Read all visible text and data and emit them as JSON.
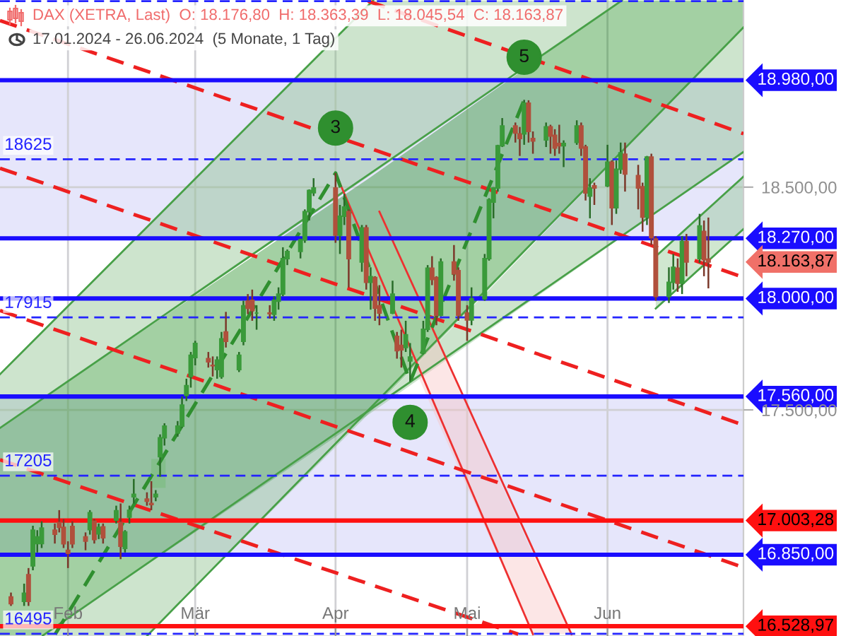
{
  "chart_data": {
    "type": "candlestick",
    "title": "DAX (XETRA, Last)  O: 18.176,80  H: 18.363,39  L: 18.045,54  C: 18.163,87",
    "subtitle": "17.01.2024 - 26.06.2024  (5 Monate, 1 Tag)",
    "x": [
      "2024-01-19",
      "2024-01-22",
      "2024-01-23",
      "2024-01-24",
      "2024-01-25",
      "2024-01-26",
      "2024-01-29",
      "2024-01-30",
      "2024-01-31",
      "2024-02-01",
      "2024-02-02",
      "2024-02-05",
      "2024-02-06",
      "2024-02-07",
      "2024-02-08",
      "2024-02-09",
      "2024-02-12",
      "2024-02-13",
      "2024-02-14",
      "2024-02-15",
      "2024-02-16",
      "2024-02-19",
      "2024-02-20",
      "2024-02-21",
      "2024-02-22",
      "2024-02-23",
      "2024-02-26",
      "2024-02-27",
      "2024-02-28",
      "2024-02-29",
      "2024-03-01",
      "2024-03-04",
      "2024-03-05",
      "2024-03-06",
      "2024-03-07",
      "2024-03-08",
      "2024-03-11",
      "2024-03-12",
      "2024-03-13",
      "2024-03-14",
      "2024-03-15",
      "2024-03-18",
      "2024-03-19",
      "2024-03-20",
      "2024-03-21",
      "2024-03-22",
      "2024-03-25",
      "2024-03-26",
      "2024-03-27",
      "2024-03-28",
      "2024-04-02",
      "2024-04-03",
      "2024-04-04",
      "2024-04-05",
      "2024-04-08",
      "2024-04-09",
      "2024-04-10",
      "2024-04-11",
      "2024-04-12",
      "2024-04-15",
      "2024-04-16",
      "2024-04-17",
      "2024-04-18",
      "2024-04-19",
      "2024-04-22",
      "2024-04-23",
      "2024-04-24",
      "2024-04-25",
      "2024-04-26",
      "2024-04-29",
      "2024-04-30",
      "2024-05-02",
      "2024-05-03",
      "2024-05-06",
      "2024-05-07",
      "2024-05-08",
      "2024-05-09",
      "2024-05-10",
      "2024-05-13",
      "2024-05-14",
      "2024-05-15",
      "2024-05-16",
      "2024-05-17",
      "2024-05-20",
      "2024-05-21",
      "2024-05-22",
      "2024-05-23",
      "2024-05-24",
      "2024-05-27",
      "2024-05-28",
      "2024-05-29",
      "2024-05-30",
      "2024-05-31",
      "2024-06-03",
      "2024-06-04",
      "2024-06-05",
      "2024-06-06",
      "2024-06-07",
      "2024-06-10",
      "2024-06-11",
      "2024-06-12",
      "2024-06-13",
      "2024-06-14",
      "2024-06-17",
      "2024-06-18",
      "2024-06-19",
      "2024-06-20",
      "2024-06-21",
      "2024-06-24",
      "2024-06-25",
      "2024-06-26"
    ],
    "ohlc": [
      [
        16660,
        16680,
        16620,
        16630
      ],
      [
        16640,
        16720,
        16620,
        16677
      ],
      [
        16760,
        16790,
        16620,
        16640
      ],
      [
        16800,
        16980,
        16780,
        16960
      ],
      [
        16900,
        16960,
        16860,
        16930
      ],
      [
        16900,
        17000,
        16880,
        16970
      ],
      [
        16960,
        16990,
        16900,
        16942
      ],
      [
        16994,
        17050,
        16950,
        16973
      ],
      [
        16973,
        17010,
        16880,
        16899
      ],
      [
        16870,
        16910,
        16790,
        16856
      ],
      [
        16977,
        17000,
        16880,
        16899
      ],
      [
        16930,
        16950,
        16870,
        16911
      ],
      [
        16962,
        17050,
        16940,
        17039
      ],
      [
        17000,
        17010,
        16900,
        16918
      ],
      [
        16943,
        16990,
        16920,
        16973
      ],
      [
        16975,
        16990,
        16900,
        16926
      ],
      [
        17005,
        17070,
        16990,
        17047
      ],
      [
        16994,
        17080,
        16830,
        16888
      ],
      [
        16878,
        16960,
        16860,
        16952
      ],
      [
        17019,
        17070,
        16990,
        17050
      ],
      [
        17110,
        17190,
        17080,
        17121
      ],
      [
        17100,
        17130,
        17070,
        17090
      ],
      [
        17080,
        17180,
        17050,
        17075
      ],
      [
        17110,
        17140,
        17090,
        17121
      ],
      [
        17290,
        17390,
        17200,
        17375
      ],
      [
        17375,
        17440,
        17340,
        17427
      ],
      [
        17396,
        17450,
        17380,
        17427
      ],
      [
        17427,
        17560,
        17420,
        17522
      ],
      [
        17565,
        17640,
        17540,
        17609
      ],
      [
        17650,
        17760,
        17600,
        17745
      ],
      [
        17735,
        17810,
        17700,
        17798
      ],
      [
        17730,
        17760,
        17690,
        17716
      ],
      [
        17700,
        17740,
        17650,
        17698
      ],
      [
        17681,
        17740,
        17640,
        17724
      ],
      [
        17650,
        17850,
        17640,
        17819
      ],
      [
        17850,
        17940,
        17780,
        17808
      ],
      [
        17681,
        17760,
        17670,
        17745
      ],
      [
        17808,
        17990,
        17790,
        17967
      ],
      [
        17988,
        18020,
        17930,
        17956
      ],
      [
        17992,
        18040,
        17900,
        17946
      ],
      [
        17935,
        17970,
        17860,
        17935
      ],
      [
        17935,
        17970,
        17910,
        17932
      ],
      [
        17929,
        18010,
        17900,
        17992
      ],
      [
        17988,
        18050,
        17950,
        18020
      ],
      [
        18020,
        18230,
        18010,
        18179
      ],
      [
        18179,
        18220,
        18150,
        18211
      ],
      [
        18211,
        18270,
        18180,
        18263
      ],
      [
        18263,
        18400,
        18250,
        18390
      ],
      [
        18390,
        18490,
        18350,
        18485
      ],
      [
        18475,
        18540,
        18460,
        18496
      ],
      [
        18496,
        18563,
        18250,
        18284
      ],
      [
        18284,
        18420,
        18200,
        18369
      ],
      [
        18369,
        18470,
        18330,
        18411
      ],
      [
        18390,
        18400,
        18050,
        18179
      ],
      [
        18164,
        18330,
        18120,
        18317
      ],
      [
        18317,
        18330,
        18040,
        18073
      ],
      [
        18073,
        18140,
        17950,
        18098
      ],
      [
        18094,
        18100,
        17900,
        17957
      ],
      [
        17967,
        18060,
        17880,
        17935
      ],
      [
        17935,
        18080,
        17930,
        18020
      ],
      [
        17830,
        17850,
        17730,
        17766
      ],
      [
        17790,
        17860,
        17690,
        17770
      ],
      [
        17780,
        17900,
        17760,
        17837
      ],
      [
        17720,
        17800,
        17626,
        17737
      ],
      [
        17755,
        17900,
        17750,
        17862
      ],
      [
        17862,
        18150,
        17850,
        18136
      ],
      [
        18136,
        18190,
        18060,
        18085
      ],
      [
        18094,
        18100,
        17880,
        17925
      ],
      [
        17925,
        18180,
        17920,
        18164
      ],
      [
        18164,
        18240,
        18080,
        18111
      ],
      [
        18125,
        18140,
        17900,
        17925
      ],
      [
        17935,
        17970,
        17810,
        17904
      ],
      [
        17904,
        18050,
        17880,
        17999
      ],
      [
        17999,
        18200,
        17990,
        18179
      ],
      [
        18179,
        18450,
        18170,
        18443
      ],
      [
        18433,
        18500,
        18360,
        18496
      ],
      [
        18496,
        18690,
        18480,
        18686
      ],
      [
        18686,
        18810,
        18680,
        18775
      ],
      [
        18775,
        18790,
        18700,
        18743
      ],
      [
        18739,
        18770,
        18640,
        18718
      ],
      [
        18739,
        18892,
        18690,
        18877
      ],
      [
        18877,
        18890,
        18700,
        18750
      ],
      [
        18718,
        18750,
        18650,
        18707
      ],
      [
        18712,
        18790,
        18680,
        18771
      ],
      [
        18771,
        18780,
        18650,
        18729
      ],
      [
        18733,
        18760,
        18640,
        18675
      ],
      [
        18696,
        18780,
        18650,
        18686
      ],
      [
        18686,
        18710,
        18590,
        18696
      ],
      [
        18701,
        18800,
        18690,
        18775
      ],
      [
        18775,
        18790,
        18640,
        18675
      ],
      [
        18680,
        18690,
        18440,
        18474
      ],
      [
        18460,
        18540,
        18360,
        18496
      ],
      [
        18506,
        18520,
        18420,
        18496
      ],
      [
        18506,
        18690,
        18500,
        18612
      ],
      [
        18612,
        18620,
        18330,
        18407
      ],
      [
        18407,
        18620,
        18380,
        18580
      ],
      [
        18580,
        18700,
        18560,
        18654
      ],
      [
        18648,
        18700,
        18480,
        18559
      ],
      [
        18552,
        18600,
        18400,
        18496
      ],
      [
        18502,
        18520,
        18300,
        18365
      ],
      [
        18365,
        18640,
        18330,
        18635
      ],
      [
        18635,
        18650,
        18240,
        18273
      ],
      [
        18267,
        18280,
        17990,
        18009
      ],
      [
        18009,
        18140,
        17980,
        18073
      ],
      [
        18073,
        18200,
        18040,
        18140
      ],
      [
        18136,
        18180,
        18030,
        18069
      ],
      [
        18069,
        18280,
        18020,
        18256
      ],
      [
        18256,
        18290,
        18100,
        18164
      ],
      [
        18179,
        18380,
        18160,
        18326
      ],
      [
        18301,
        18350,
        18100,
        18174
      ],
      [
        18176.8,
        18363.39,
        18045.54,
        18163.87
      ]
    ],
    "colors": [
      "#b0503c",
      "#3a9a3a",
      "#b0503c",
      "#3a9a3a",
      "#3a9a3a",
      "#3a9a3a",
      "#b0503c",
      "#b0503c",
      "#b0503c",
      "#b0503c",
      "#b0503c",
      "#b0503c",
      "#3a9a3a",
      "#b0503c",
      "#3a9a3a",
      "#b0503c",
      "#3a9a3a",
      "#b0503c",
      "#3a9a3a",
      "#3a9a3a",
      "#3a9a3a",
      "#b0503c",
      "#b0503c",
      "#3a9a3a",
      "#3a9a3a",
      "#3a9a3a",
      "#3a9a3a",
      "#3a9a3a",
      "#3a9a3a",
      "#3a9a3a",
      "#3a9a3a",
      "#b0503c",
      "#b0503c",
      "#3a9a3a",
      "#3a9a3a",
      "#b0503c",
      "#3a9a3a",
      "#3a9a3a",
      "#b0503c",
      "#b0503c",
      "#3a9a3a",
      "#b0503c",
      "#3a9a3a",
      "#3a9a3a",
      "#3a9a3a",
      "#3a9a3a",
      "#3a9a3a",
      "#3a9a3a",
      "#3a9a3a",
      "#3a9a3a",
      "#b0503c",
      "#3a9a3a",
      "#3a9a3a",
      "#b0503c",
      "#3a9a3a",
      "#b0503c",
      "#3a9a3a",
      "#b0503c",
      "#b0503c",
      "#3a9a3a",
      "#b0503c",
      "#b0503c",
      "#3a9a3a",
      "#3a9a3a",
      "#3a9a3a",
      "#3a9a3a",
      "#b0503c",
      "#b0503c",
      "#3a9a3a",
      "#b0503c",
      "#b0503c",
      "#b0503c",
      "#3a9a3a",
      "#3a9a3a",
      "#3a9a3a",
      "#3a9a3a",
      "#3a9a3a",
      "#3a9a3a",
      "#b0503c",
      "#b0503c",
      "#3a9a3a",
      "#b0503c",
      "#b0503c",
      "#3a9a3a",
      "#b0503c",
      "#b0503c",
      "#b0503c",
      "#3a9a3a",
      "#3a9a3a",
      "#b0503c",
      "#b0503c",
      "#3a9a3a",
      "#b0503c",
      "#3a9a3a",
      "#b0503c",
      "#3a9a3a",
      "#3a9a3a",
      "#b0503c",
      "#b0503c",
      "#b0503c",
      "#3a9a3a",
      "#b0503c",
      "#b0503c",
      "#3a9a3a",
      "#3a9a3a",
      "#b0503c",
      "#3a9a3a",
      "#b0503c",
      "#3a9a3a",
      "#b0503c",
      "#b0503c"
    ],
    "series": [
      {
        "type": "line",
        "color": "#82bc82",
        "x": [
          "2024-01-16T12:00",
          "2024-04-10T14:00",
          "2024-06-06T07:00"
        ],
        "values": [
          null,
          null,
          null
        ],
        "upper": [
          17660,
          19338,
          19338
        ],
        "lower": [
          17419,
          18562,
          19338
        ]
      },
      {
        "type": "line",
        "color": "#1a8a1a",
        "x": [
          "2024-01-16T12:00",
          "2024-01-26T06:00",
          "2024-04-09T01:00",
          "2024-06-06T07:00",
          "2024-07-04"
        ],
        "values": [
          null,
          null,
          null,
          null,
          null
        ],
        "upper": [
          17419,
          17552,
          18532,
          19338,
          19338
        ],
        "lower": [
          16487,
          16487,
          17472,
          18663,
          19217
        ]
      },
      {
        "type": "line",
        "color": "#82bc82",
        "x": [
          "2024-01-26T06:00",
          "2024-02-19T02:00",
          "2024-04-09T01:00",
          "2024-07-04"
        ],
        "values": [
          null,
          null,
          null,
          null
        ],
        "upper": [
          16487,
          16806,
          17472,
          19217
        ],
        "lower": [
          16487,
          16487,
          17472,
          18658
        ]
      },
      {
        "type": "line",
        "color": "#8ac48a",
        "x": [
          "2024-06-14",
          "2024-07-04"
        ],
        "values": [
          null,
          null
        ],
        "upper": [
          18189,
          18547
        ],
        "lower": [
          17955,
          18312
        ]
      },
      {
        "type": "line",
        "color": "#f8c0c0",
        "x": [
          "2024-04-19T14:00",
          "2024-04-25",
          "2024-05-17",
          "2024-05-25T19:00"
        ],
        "values": [
          null,
          null,
          null,
          null
        ],
        "upper": [
          17708,
          17818,
          16852,
          16493
        ],
        "lower": [
          17708,
          17462,
          16493,
          16493
        ]
      },
      {
        "type": "line",
        "color": "#6cb86c",
        "x": [
          "2024-02-20",
          "2024-02-23T06:00"
        ],
        "values": [
          null,
          null
        ],
        "upper": [
          17280,
          17280
        ],
        "lower": [
          17150,
          17150
        ]
      },
      {
        "type": "line",
        "color": "#48a048",
        "x": [
          "2024-01-16T12:00",
          "2024-04-10T14:00"
        ],
        "values": [
          17660,
          19338
        ]
      },
      {
        "type": "line",
        "color": "#48a048",
        "x": [
          "2024-01-16T12:00",
          "2024-06-06T07:00"
        ],
        "values": [
          17419,
          19338
        ]
      },
      {
        "type": "line",
        "color": "#48a048",
        "x": [
          "2024-02-19T02:00",
          "2024-07-04"
        ],
        "values": [
          16487,
          19217
        ]
      },
      {
        "type": "line",
        "color": "#48a048",
        "x": [
          "2024-01-26T06:00",
          "2024-07-04"
        ],
        "values": [
          16487,
          18658
        ]
      },
      {
        "type": "line",
        "color": "#48a048",
        "x": [
          "2024-06-14",
          "2024-07-04"
        ],
        "values": [
          18189,
          18547
        ]
      },
      {
        "type": "line",
        "color": "#48a048",
        "x": [
          "2024-06-14",
          "2024-07-04"
        ],
        "values": [
          17955,
          18312
        ]
      },
      {
        "type": "line",
        "color": "#ee3030",
        "x": [
          "2024-04-02",
          "2024-05-17"
        ],
        "values": [
          18563,
          16493
        ]
      },
      {
        "type": "line",
        "color": "#ee3030",
        "x": [
          "2024-04-12",
          "2024-05-25T19:00"
        ],
        "values": [
          18390,
          16493
        ]
      },
      {
        "type": "line",
        "color": "#ee2020",
        "line_style": "dashed",
        "x": [
          "2024-04-09T10:00",
          "2024-07-04"
        ],
        "values": [
          19335,
          18740
        ]
      },
      {
        "type": "line",
        "color": "#ee2020",
        "line_style": "dashed",
        "x": [
          "2024-01-16T12:00",
          "2024-07-04"
        ],
        "values": [
          19248,
          18095
        ]
      },
      {
        "type": "line",
        "color": "#ee2020",
        "line_style": "dashed",
        "x": [
          "2024-01-16T12:00",
          "2024-07-04"
        ],
        "values": [
          18585,
          17432
        ]
      },
      {
        "type": "line",
        "color": "#ee2020",
        "line_style": "dashed",
        "x": [
          "2024-01-16T12:00",
          "2024-07-04"
        ],
        "values": [
          17946,
          16793
        ]
      },
      {
        "type": "line",
        "color": "#ee2020",
        "line_style": "dashed",
        "x": [
          "2024-01-16T12:00",
          "2024-05-13T16:00"
        ],
        "values": [
          17276,
          16493
        ]
      },
      {
        "type": "line",
        "color": "#2f8f2f",
        "line_style": "dashed",
        "x": [
          "2024-01-29T02:00",
          "2024-04-02",
          "2024-04-19",
          "2024-05-15"
        ],
        "values": [
          16493,
          18563,
          17626,
          18892
        ]
      }
    ],
    "bands": [
      {
        "axis": "y",
        "from": 18270,
        "to": 18980,
        "color": "#e6e6fb"
      },
      {
        "axis": "y",
        "from": 16850,
        "to": 17560,
        "color": "#e6e6fb"
      }
    ],
    "ref_lines": [
      {
        "axis": "y",
        "value": 19335,
        "color": "#2424ff",
        "line_style": "dashed"
      },
      {
        "axis": "y",
        "value": 18980,
        "label": "18.980,00",
        "color": "#1a0dff",
        "line_style": "solid"
      },
      {
        "axis": "y",
        "value": 18625,
        "label": "18625",
        "color": "#2424ff",
        "line_style": "dashed"
      },
      {
        "axis": "y",
        "value": 18270,
        "label": "18.270,00",
        "color": "#1a0dff",
        "line_style": "solid"
      },
      {
        "axis": "y",
        "value": 18000,
        "label": "18.000,00",
        "color": "#1a0dff",
        "line_style": "solid"
      },
      {
        "axis": "y",
        "value": 17915,
        "label": "17915",
        "color": "#2424ff",
        "line_style": "dashed"
      },
      {
        "axis": "y",
        "value": 17560,
        "label": "17.560,00",
        "color": "#1a0dff",
        "line_style": "solid"
      },
      {
        "axis": "y",
        "value": 17205,
        "label": "17205",
        "color": "#2424ff",
        "line_style": "dashed"
      },
      {
        "axis": "y",
        "value": 17003.28,
        "label": "17.003,28",
        "color": "#ff1010",
        "line_style": "solid"
      },
      {
        "axis": "y",
        "value": 16850,
        "label": "16.850,00",
        "color": "#1a0dff",
        "line_style": "solid"
      },
      {
        "axis": "y",
        "value": 16528.97,
        "label": "16.528,97",
        "color": "#ff1010",
        "line_style": "solid"
      },
      {
        "axis": "y",
        "value": 16495,
        "label": "16495",
        "color": "#2424ff",
        "line_style": "dashed"
      }
    ],
    "annotations": [
      {
        "text": "18.163,87",
        "x": "2024-06-26",
        "y": 18163.87
      },
      {
        "text": "3",
        "x": "2024-04-02",
        "y": 18765
      },
      {
        "text": "4",
        "x": "2024-04-19",
        "y": 17444
      },
      {
        "text": "5",
        "x": "2024-05-15",
        "y": 19083
      }
    ],
    "xlim": [
      "2024-01-16T12:00",
      "2024-07-04"
    ],
    "xticks": [
      {
        "value": "2024-02-01",
        "label": "Feb"
      },
      {
        "value": "2024-03-01",
        "label": "Mär"
      },
      {
        "value": "2024-04-02",
        "label": "Apr"
      },
      {
        "value": "2024-05-02",
        "label": "Mai"
      },
      {
        "value": "2024-06-03",
        "label": "Jun"
      }
    ],
    "ylim": [
      16485,
      19340
    ],
    "yticks": [
      {
        "value": 17500,
        "label": "17.500,00"
      },
      {
        "value": 18500,
        "label": "18.500,00"
      }
    ],
    "grid": true
  }
}
